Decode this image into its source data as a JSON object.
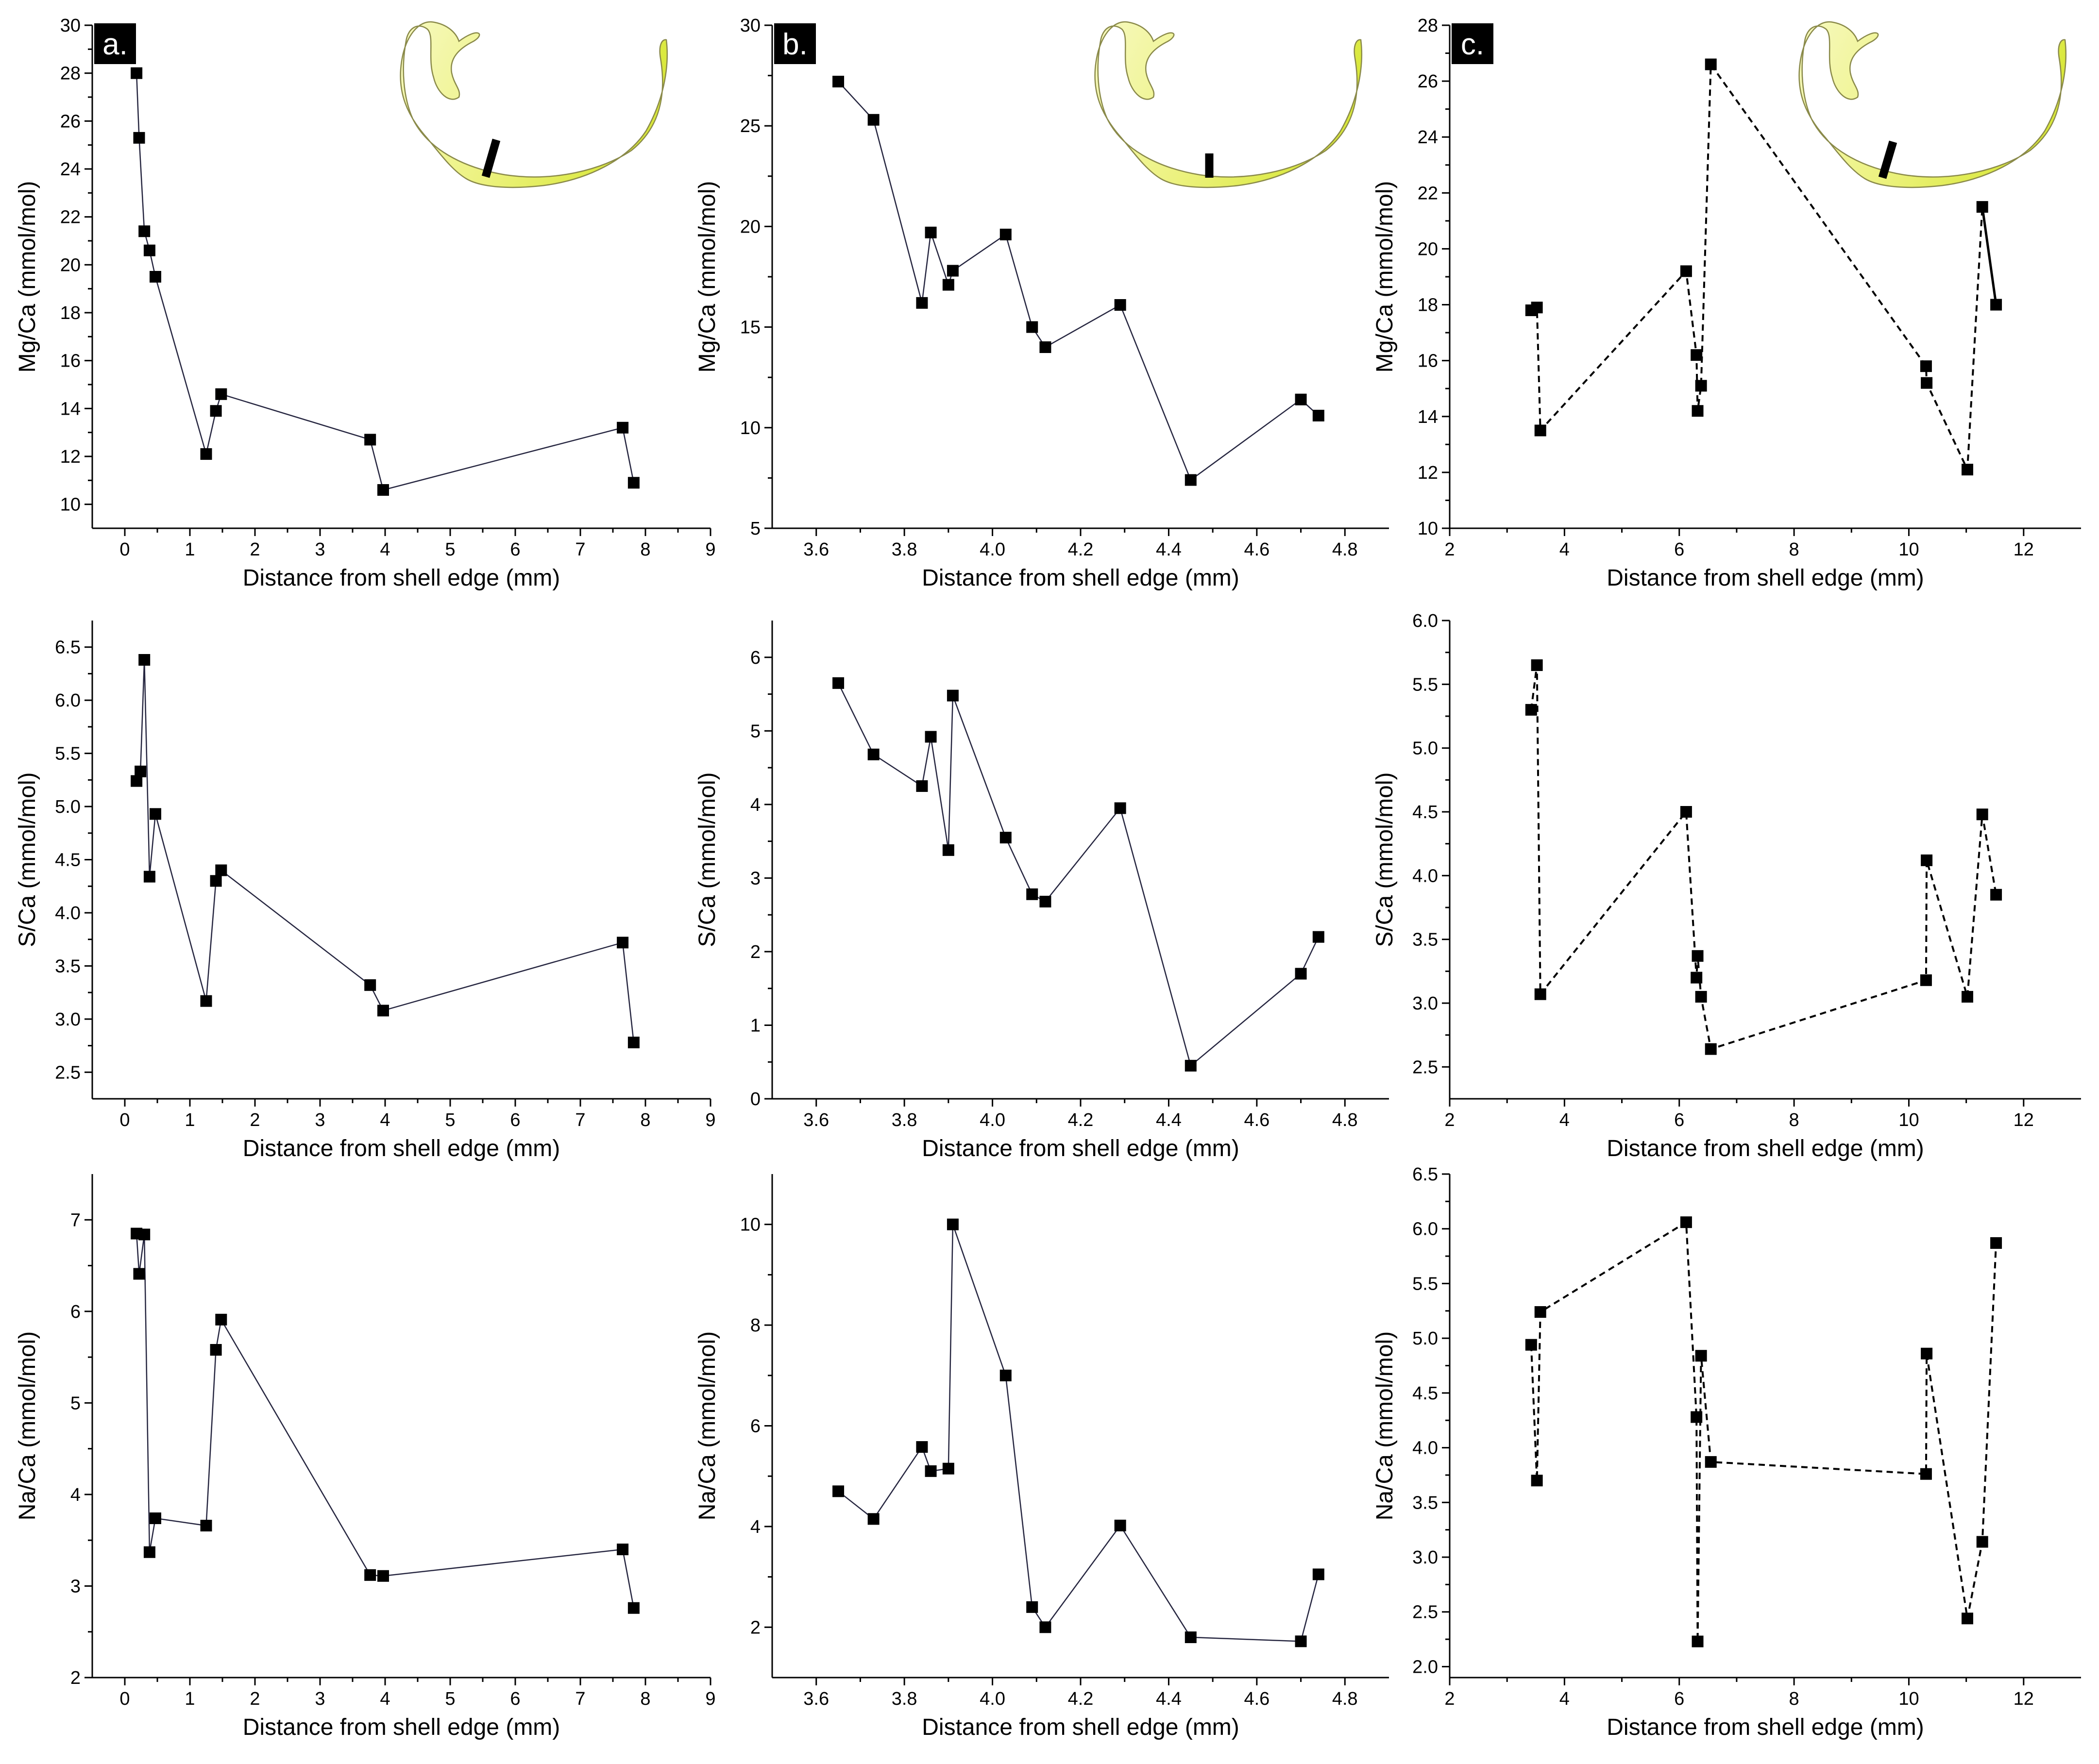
{
  "chart_data": [
    {
      "id": "a-mg",
      "type": "line",
      "style": "solid",
      "panel_letter": "a.",
      "inset": true,
      "xlabel": "Distance from shell edge (mm)",
      "ylabel": "Mg/Ca (mmol/mol)",
      "xlim": [
        -0.5,
        9
      ],
      "ylim": [
        9,
        30
      ],
      "xticks": [
        0,
        1,
        2,
        3,
        4,
        5,
        6,
        7,
        8,
        9
      ],
      "xtick_labels": [
        "0",
        "1",
        "2",
        "3",
        "4",
        "5",
        "6",
        "7",
        "8",
        "9"
      ],
      "yticks": [
        10,
        12,
        14,
        16,
        18,
        20,
        22,
        24,
        26,
        28,
        30
      ],
      "ytick_labels": [
        "10",
        "12",
        "14",
        "16",
        "18",
        "20",
        "22",
        "24",
        "26",
        "28",
        "30"
      ],
      "x": [
        0.18,
        0.22,
        0.3,
        0.38,
        0.47,
        1.25,
        1.4,
        1.48,
        3.77,
        3.97,
        7.65,
        7.82
      ],
      "y": [
        28.0,
        25.3,
        21.4,
        20.6,
        19.5,
        12.1,
        13.9,
        14.6,
        12.7,
        10.6,
        13.2,
        10.9
      ]
    },
    {
      "id": "b-mg",
      "type": "line",
      "style": "solid",
      "panel_letter": "b.",
      "inset": true,
      "xlabel": "Distance from shell edge (mm)",
      "ylabel": "Mg/Ca (mmol/mol)",
      "xlim": [
        3.5,
        4.9
      ],
      "ylim": [
        5,
        30
      ],
      "xticks": [
        3.6,
        3.8,
        4.0,
        4.2,
        4.4,
        4.6,
        4.8
      ],
      "xtick_labels": [
        "3.6",
        "3.8",
        "4.0",
        "4.2",
        "4.4",
        "4.6",
        "4.8"
      ],
      "yticks": [
        5,
        10,
        15,
        20,
        25,
        30
      ],
      "ytick_labels": [
        "5",
        "10",
        "15",
        "20",
        "25",
        "30"
      ],
      "x": [
        3.65,
        3.73,
        3.84,
        3.86,
        3.9,
        3.91,
        4.03,
        4.09,
        4.12,
        4.29,
        4.45,
        4.7,
        4.74
      ],
      "y": [
        27.2,
        25.3,
        16.2,
        19.7,
        17.1,
        17.8,
        19.6,
        15.0,
        14.0,
        16.1,
        7.4,
        11.4,
        10.6
      ]
    },
    {
      "id": "c-mg",
      "type": "line",
      "style": "dashed",
      "panel_letter": "c.",
      "inset": true,
      "xlabel": "Distance from shell edge (mm)",
      "ylabel": "Mg/Ca (mmol/mol)",
      "xlim": [
        2,
        13
      ],
      "ylim": [
        10,
        28
      ],
      "xticks": [
        2,
        4,
        6,
        8,
        10,
        12
      ],
      "xtick_labels": [
        "2",
        "4",
        "6",
        "8",
        "10",
        "12"
      ],
      "yticks": [
        10,
        12,
        14,
        16,
        18,
        20,
        22,
        24,
        26,
        28
      ],
      "ytick_labels": [
        "10",
        "12",
        "14",
        "16",
        "18",
        "20",
        "22",
        "24",
        "26",
        "28"
      ],
      "x": [
        3.42,
        3.52,
        3.58,
        6.12,
        6.3,
        6.32,
        6.38,
        6.55,
        10.3,
        10.31,
        11.02,
        11.28,
        11.52
      ],
      "y": [
        17.8,
        17.9,
        13.5,
        19.2,
        16.2,
        14.2,
        15.1,
        26.6,
        15.8,
        15.2,
        12.1,
        21.5,
        18.0
      ],
      "solid_last_segment": true
    },
    {
      "id": "a-s",
      "type": "line",
      "style": "solid",
      "xlabel": "Distance from shell edge (mm)",
      "ylabel": "S/Ca (mmol/mol)",
      "xlim": [
        -0.5,
        9
      ],
      "ylim": [
        2.25,
        6.75
      ],
      "xticks": [
        0,
        1,
        2,
        3,
        4,
        5,
        6,
        7,
        8,
        9
      ],
      "xtick_labels": [
        "0",
        "1",
        "2",
        "3",
        "4",
        "5",
        "6",
        "7",
        "8",
        "9"
      ],
      "yticks": [
        2.5,
        3.0,
        3.5,
        4.0,
        4.5,
        5.0,
        5.5,
        6.0,
        6.5
      ],
      "ytick_labels": [
        "2.5",
        "3.0",
        "3.5",
        "4.0",
        "4.5",
        "5.0",
        "5.5",
        "6.0",
        "6.5"
      ],
      "x": [
        0.18,
        0.24,
        0.3,
        0.38,
        0.47,
        1.25,
        1.4,
        1.48,
        3.77,
        3.97,
        7.65,
        7.82
      ],
      "y": [
        5.24,
        5.33,
        6.38,
        4.34,
        4.93,
        3.17,
        4.3,
        4.4,
        3.32,
        3.08,
        3.72,
        2.78
      ]
    },
    {
      "id": "b-s",
      "type": "line",
      "style": "solid",
      "xlabel": "Distance from shell edge (mm)",
      "ylabel": "S/Ca (mmol/mol)",
      "xlim": [
        3.5,
        4.9
      ],
      "ylim": [
        0,
        6.5
      ],
      "xticks": [
        3.6,
        3.8,
        4.0,
        4.2,
        4.4,
        4.6,
        4.8
      ],
      "xtick_labels": [
        "3.6",
        "3.8",
        "4.0",
        "4.2",
        "4.4",
        "4.6",
        "4.8"
      ],
      "yticks": [
        0,
        1,
        2,
        3,
        4,
        5,
        6
      ],
      "ytick_labels": [
        "0",
        "1",
        "2",
        "3",
        "4",
        "5",
        "6"
      ],
      "x": [
        3.65,
        3.73,
        3.84,
        3.86,
        3.9,
        3.91,
        4.03,
        4.09,
        4.12,
        4.29,
        4.45,
        4.7,
        4.74
      ],
      "y": [
        5.65,
        4.68,
        4.25,
        4.92,
        3.38,
        5.48,
        3.55,
        2.78,
        2.68,
        3.95,
        0.45,
        1.7,
        2.2
      ]
    },
    {
      "id": "c-s",
      "type": "line",
      "style": "dashed",
      "xlabel": "Distance from shell edge (mm)",
      "ylabel": "S/Ca (mmol/mol)",
      "xlim": [
        2,
        13
      ],
      "ylim": [
        2.25,
        6.0
      ],
      "xticks": [
        2,
        4,
        6,
        8,
        10,
        12
      ],
      "xtick_labels": [
        "2",
        "4",
        "6",
        "8",
        "10",
        "12"
      ],
      "yticks": [
        2.5,
        3.0,
        3.5,
        4.0,
        4.5,
        5.0,
        5.5,
        6.0
      ],
      "ytick_labels": [
        "2.5",
        "3.0",
        "3.5",
        "4.0",
        "4.5",
        "5.0",
        "5.5",
        "6.0"
      ],
      "x": [
        3.42,
        3.52,
        3.58,
        6.12,
        6.3,
        6.32,
        6.38,
        6.55,
        10.3,
        10.31,
        11.02,
        11.28,
        11.52
      ],
      "y": [
        5.3,
        5.65,
        3.07,
        4.5,
        3.2,
        3.37,
        3.05,
        2.64,
        3.18,
        4.12,
        3.05,
        4.48,
        3.85
      ]
    },
    {
      "id": "a-na",
      "type": "line",
      "style": "solid",
      "xlabel": "Distance from shell edge (mm)",
      "ylabel": "Na/Ca (mmol/mol)",
      "xlim": [
        -0.5,
        9
      ],
      "ylim": [
        2,
        7.5
      ],
      "xticks": [
        0,
        1,
        2,
        3,
        4,
        5,
        6,
        7,
        8,
        9
      ],
      "xtick_labels": [
        "0",
        "1",
        "2",
        "3",
        "4",
        "5",
        "6",
        "7",
        "8",
        "9"
      ],
      "yticks": [
        2,
        3,
        4,
        5,
        6,
        7
      ],
      "ytick_labels": [
        "2",
        "3",
        "4",
        "5",
        "6",
        "7"
      ],
      "x": [
        0.18,
        0.22,
        0.3,
        0.38,
        0.47,
        1.25,
        1.4,
        1.48,
        3.77,
        3.97,
        7.65,
        7.82
      ],
      "y": [
        6.85,
        6.41,
        6.84,
        3.37,
        3.74,
        3.66,
        5.58,
        5.91,
        3.12,
        3.11,
        3.4,
        2.76
      ]
    },
    {
      "id": "b-na",
      "type": "line",
      "style": "solid",
      "xlabel": "Distance from shell edge (mm)",
      "ylabel": "Na/Ca (mmol/mol)",
      "xlim": [
        3.5,
        4.9
      ],
      "ylim": [
        1,
        11
      ],
      "xticks": [
        3.6,
        3.8,
        4.0,
        4.2,
        4.4,
        4.6,
        4.8
      ],
      "xtick_labels": [
        "3.6",
        "3.8",
        "4.0",
        "4.2",
        "4.4",
        "4.6",
        "4.8"
      ],
      "yticks": [
        2,
        4,
        6,
        8,
        10
      ],
      "ytick_labels": [
        "2",
        "4",
        "6",
        "8",
        "10"
      ],
      "x": [
        3.65,
        3.73,
        3.84,
        3.86,
        3.9,
        3.91,
        4.03,
        4.09,
        4.12,
        4.29,
        4.45,
        4.7,
        4.74
      ],
      "y": [
        4.7,
        4.15,
        5.58,
        5.1,
        5.15,
        10.0,
        7.0,
        2.4,
        2.0,
        4.02,
        1.8,
        1.72,
        3.05
      ]
    },
    {
      "id": "c-na",
      "type": "line",
      "style": "dashed",
      "xlabel": "Distance from shell edge (mm)",
      "ylabel": "Na/Ca (mmol/mol)",
      "xlim": [
        2,
        13
      ],
      "ylim": [
        1.9,
        6.5
      ],
      "xticks": [
        2,
        4,
        6,
        8,
        10,
        12
      ],
      "xtick_labels": [
        "2",
        "4",
        "6",
        "8",
        "10",
        "12"
      ],
      "yticks": [
        2.0,
        2.5,
        3.0,
        3.5,
        4.0,
        4.5,
        5.0,
        5.5,
        6.0,
        6.5
      ],
      "ytick_labels": [
        "2.0",
        "2.5",
        "3.0",
        "3.5",
        "4.0",
        "4.5",
        "5.0",
        "5.5",
        "6.0",
        "6.5"
      ],
      "x": [
        3.42,
        3.52,
        3.58,
        6.12,
        6.3,
        6.32,
        6.38,
        6.55,
        10.3,
        10.31,
        11.02,
        11.28,
        11.52
      ],
      "y": [
        4.94,
        3.7,
        5.24,
        6.06,
        4.28,
        2.23,
        4.84,
        3.87,
        3.76,
        4.86,
        2.44,
        3.14,
        5.87
      ]
    }
  ],
  "colors": {
    "ink": "#000000",
    "line_solid": "#262640",
    "shell_fill_light": "#f3f7a8",
    "shell_fill": "#e3ee55",
    "shell_outline": "#8a8a4a",
    "band": "#000000"
  }
}
